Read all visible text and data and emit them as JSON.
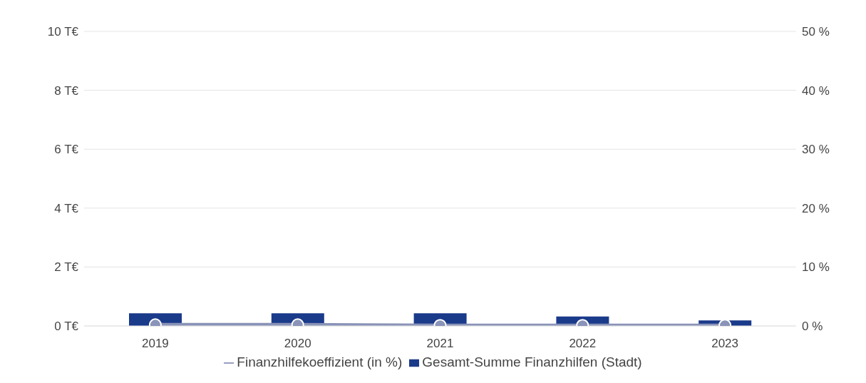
{
  "chart_data": {
    "type": "bar",
    "categories": [
      "2019",
      "2020",
      "2021",
      "2022",
      "2023"
    ],
    "series": [
      {
        "name": "Gesamt-Summe Finanzhilfen (Stadt)",
        "color": "#1a3a8a",
        "values": [
          0.43,
          0.43,
          0.43,
          0.32,
          0.19
        ]
      },
      {
        "name": "Finanzhilfekoeffizient (in %)",
        "type": "line",
        "axis": "y2",
        "color": "#8a93b8",
        "marker": "circle",
        "values": [
          0.2,
          0.2,
          0.1,
          0.1,
          0.1
        ]
      }
    ],
    "ylim": [
      0,
      10
    ],
    "yticks": [
      {
        "value": 0,
        "label": "0 T€"
      },
      {
        "value": 2,
        "label": "2 T€"
      },
      {
        "value": 4,
        "label": "4 T€"
      },
      {
        "value": 6,
        "label": "6 T€"
      },
      {
        "value": 8,
        "label": "8 T€"
      },
      {
        "value": 10,
        "label": "10 T€"
      }
    ],
    "y2lim": [
      0,
      50
    ],
    "y2ticks": [
      {
        "value": 0,
        "label": "0 %"
      },
      {
        "value": 10,
        "label": "10 %"
      },
      {
        "value": 20,
        "label": "20 %"
      },
      {
        "value": 30,
        "label": "30 %"
      },
      {
        "value": 40,
        "label": "40 %"
      },
      {
        "value": 50,
        "label": "50 %"
      }
    ],
    "grid": "y",
    "legend": "bottom"
  }
}
